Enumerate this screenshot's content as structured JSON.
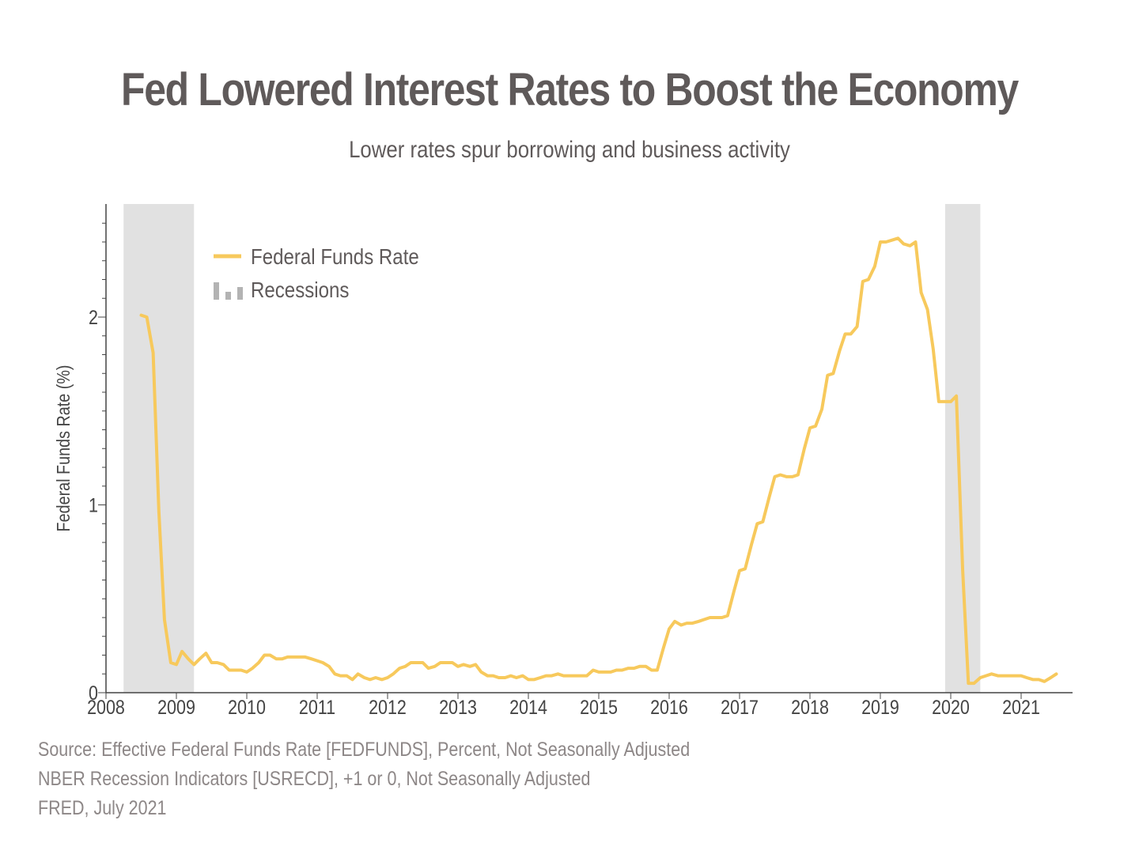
{
  "title": "Fed Lowered Interest Rates to Boost the Economy",
  "subtitle": "Lower rates spur borrowing and business activity",
  "source_lines": [
    "Source: Effective Federal Funds Rate [FEDFUNDS], Percent, Not Seasonally Adjusted",
    "NBER Recession Indicators [USRECD], +1 or 0, Not Seasonally Adjusted",
    "FRED, July 2021"
  ],
  "colors": {
    "line": "#f7c95c",
    "recession": "#e1e1e1",
    "legend_recession_icon": "#b3b3b3",
    "axis": "#444444",
    "text": "#5f5a5a"
  },
  "chart_data": {
    "type": "line",
    "title": "Fed Lowered Interest Rates to Boost the Economy",
    "subtitle": "Lower rates spur borrowing and business activity",
    "xlabel": "",
    "ylabel": "Federal Funds Rate (%)",
    "xlim": [
      2008.0,
      2021.75
    ],
    "ylim": [
      0,
      2.6
    ],
    "x_ticks": [
      2008,
      2009,
      2010,
      2011,
      2012,
      2013,
      2014,
      2015,
      2016,
      2017,
      2018,
      2019,
      2020,
      2021
    ],
    "y_ticks": [
      0,
      1,
      2
    ],
    "legend": {
      "position": "top-left",
      "entries": [
        "Federal Funds Rate",
        "Recessions"
      ]
    },
    "recessions": [
      {
        "start": 2008.25,
        "end": 2009.25
      },
      {
        "start": 2019.92,
        "end": 2020.42
      }
    ],
    "series": [
      {
        "name": "Federal Funds Rate",
        "points": [
          [
            2008.5,
            2.01
          ],
          [
            2008.58,
            2.0
          ],
          [
            2008.67,
            1.81
          ],
          [
            2008.75,
            0.97
          ],
          [
            2008.83,
            0.39
          ],
          [
            2008.92,
            0.16
          ],
          [
            2009.0,
            0.15
          ],
          [
            2009.08,
            0.22
          ],
          [
            2009.17,
            0.18
          ],
          [
            2009.25,
            0.15
          ],
          [
            2009.33,
            0.18
          ],
          [
            2009.42,
            0.21
          ],
          [
            2009.5,
            0.16
          ],
          [
            2009.58,
            0.16
          ],
          [
            2009.67,
            0.15
          ],
          [
            2009.75,
            0.12
          ],
          [
            2009.83,
            0.12
          ],
          [
            2009.92,
            0.12
          ],
          [
            2010.0,
            0.11
          ],
          [
            2010.08,
            0.13
          ],
          [
            2010.17,
            0.16
          ],
          [
            2010.25,
            0.2
          ],
          [
            2010.33,
            0.2
          ],
          [
            2010.42,
            0.18
          ],
          [
            2010.5,
            0.18
          ],
          [
            2010.58,
            0.19
          ],
          [
            2010.67,
            0.19
          ],
          [
            2010.75,
            0.19
          ],
          [
            2010.83,
            0.19
          ],
          [
            2010.92,
            0.18
          ],
          [
            2011.0,
            0.17
          ],
          [
            2011.08,
            0.16
          ],
          [
            2011.17,
            0.14
          ],
          [
            2011.25,
            0.1
          ],
          [
            2011.33,
            0.09
          ],
          [
            2011.42,
            0.09
          ],
          [
            2011.5,
            0.07
          ],
          [
            2011.58,
            0.1
          ],
          [
            2011.67,
            0.08
          ],
          [
            2011.75,
            0.07
          ],
          [
            2011.83,
            0.08
          ],
          [
            2011.92,
            0.07
          ],
          [
            2012.0,
            0.08
          ],
          [
            2012.08,
            0.1
          ],
          [
            2012.17,
            0.13
          ],
          [
            2012.25,
            0.14
          ],
          [
            2012.33,
            0.16
          ],
          [
            2012.42,
            0.16
          ],
          [
            2012.5,
            0.16
          ],
          [
            2012.58,
            0.13
          ],
          [
            2012.67,
            0.14
          ],
          [
            2012.75,
            0.16
          ],
          [
            2012.83,
            0.16
          ],
          [
            2012.92,
            0.16
          ],
          [
            2013.0,
            0.14
          ],
          [
            2013.08,
            0.15
          ],
          [
            2013.17,
            0.14
          ],
          [
            2013.25,
            0.15
          ],
          [
            2013.33,
            0.11
          ],
          [
            2013.42,
            0.09
          ],
          [
            2013.5,
            0.09
          ],
          [
            2013.58,
            0.08
          ],
          [
            2013.67,
            0.08
          ],
          [
            2013.75,
            0.09
          ],
          [
            2013.83,
            0.08
          ],
          [
            2013.92,
            0.09
          ],
          [
            2014.0,
            0.07
          ],
          [
            2014.08,
            0.07
          ],
          [
            2014.17,
            0.08
          ],
          [
            2014.25,
            0.09
          ],
          [
            2014.33,
            0.09
          ],
          [
            2014.42,
            0.1
          ],
          [
            2014.5,
            0.09
          ],
          [
            2014.58,
            0.09
          ],
          [
            2014.67,
            0.09
          ],
          [
            2014.75,
            0.09
          ],
          [
            2014.83,
            0.09
          ],
          [
            2014.92,
            0.12
          ],
          [
            2015.0,
            0.11
          ],
          [
            2015.08,
            0.11
          ],
          [
            2015.17,
            0.11
          ],
          [
            2015.25,
            0.12
          ],
          [
            2015.33,
            0.12
          ],
          [
            2015.42,
            0.13
          ],
          [
            2015.5,
            0.13
          ],
          [
            2015.58,
            0.14
          ],
          [
            2015.67,
            0.14
          ],
          [
            2015.75,
            0.12
          ],
          [
            2015.83,
            0.12
          ],
          [
            2015.92,
            0.24
          ],
          [
            2016.0,
            0.34
          ],
          [
            2016.08,
            0.38
          ],
          [
            2016.17,
            0.36
          ],
          [
            2016.25,
            0.37
          ],
          [
            2016.33,
            0.37
          ],
          [
            2016.42,
            0.38
          ],
          [
            2016.5,
            0.39
          ],
          [
            2016.58,
            0.4
          ],
          [
            2016.67,
            0.4
          ],
          [
            2016.75,
            0.4
          ],
          [
            2016.83,
            0.41
          ],
          [
            2016.92,
            0.54
          ],
          [
            2017.0,
            0.65
          ],
          [
            2017.08,
            0.66
          ],
          [
            2017.17,
            0.79
          ],
          [
            2017.25,
            0.9
          ],
          [
            2017.33,
            0.91
          ],
          [
            2017.42,
            1.04
          ],
          [
            2017.5,
            1.15
          ],
          [
            2017.58,
            1.16
          ],
          [
            2017.67,
            1.15
          ],
          [
            2017.75,
            1.15
          ],
          [
            2017.83,
            1.16
          ],
          [
            2017.92,
            1.3
          ],
          [
            2018.0,
            1.41
          ],
          [
            2018.08,
            1.42
          ],
          [
            2018.17,
            1.51
          ],
          [
            2018.25,
            1.69
          ],
          [
            2018.33,
            1.7
          ],
          [
            2018.42,
            1.82
          ],
          [
            2018.5,
            1.91
          ],
          [
            2018.58,
            1.91
          ],
          [
            2018.67,
            1.95
          ],
          [
            2018.75,
            2.19
          ],
          [
            2018.83,
            2.2
          ],
          [
            2018.92,
            2.27
          ],
          [
            2019.0,
            2.4
          ],
          [
            2019.08,
            2.4
          ],
          [
            2019.17,
            2.41
          ],
          [
            2019.25,
            2.42
          ],
          [
            2019.33,
            2.39
          ],
          [
            2019.42,
            2.38
          ],
          [
            2019.5,
            2.4
          ],
          [
            2019.58,
            2.13
          ],
          [
            2019.67,
            2.04
          ],
          [
            2019.75,
            1.83
          ],
          [
            2019.83,
            1.55
          ],
          [
            2019.92,
            1.55
          ],
          [
            2020.0,
            1.55
          ],
          [
            2020.08,
            1.58
          ],
          [
            2020.17,
            0.65
          ],
          [
            2020.25,
            0.05
          ],
          [
            2020.33,
            0.05
          ],
          [
            2020.42,
            0.08
          ],
          [
            2020.5,
            0.09
          ],
          [
            2020.58,
            0.1
          ],
          [
            2020.67,
            0.09
          ],
          [
            2020.75,
            0.09
          ],
          [
            2020.83,
            0.09
          ],
          [
            2020.92,
            0.09
          ],
          [
            2021.0,
            0.09
          ],
          [
            2021.08,
            0.08
          ],
          [
            2021.17,
            0.07
          ],
          [
            2021.25,
            0.07
          ],
          [
            2021.33,
            0.06
          ],
          [
            2021.42,
            0.08
          ],
          [
            2021.5,
            0.1
          ]
        ]
      }
    ]
  }
}
